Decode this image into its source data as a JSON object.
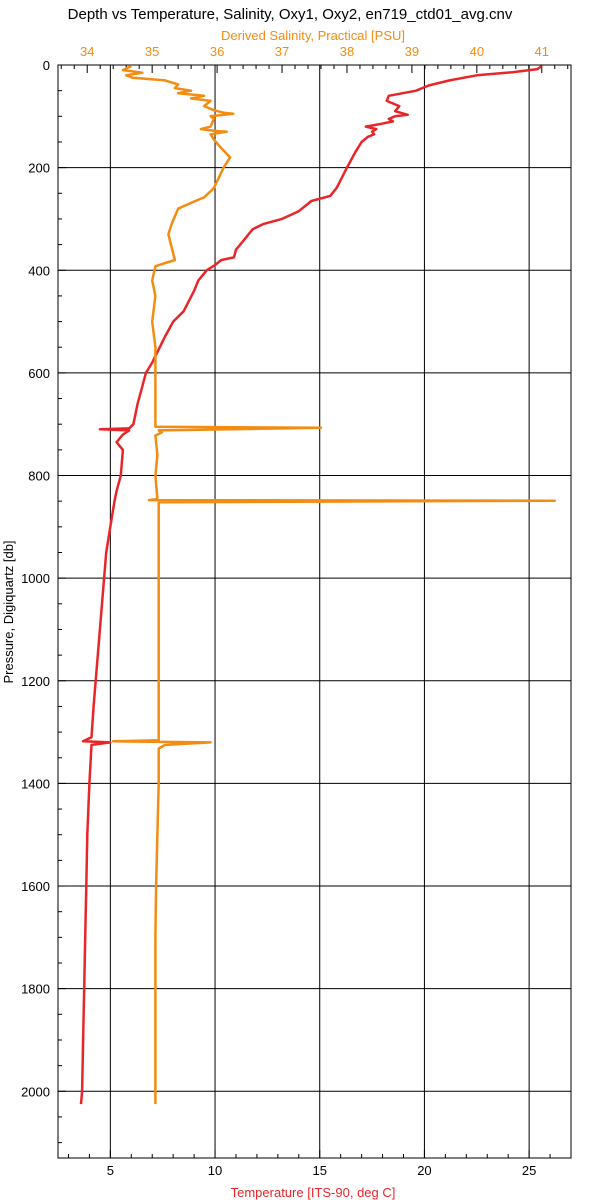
{
  "chart_data": {
    "type": "line",
    "title": "Depth vs Temperature, Salinity, Oxy1, Oxy2, en719_ctd01_avg.cnv",
    "y_axis": {
      "label": "Pressure, Digiquartz [db]",
      "range": [
        0,
        2130
      ],
      "inverted": true,
      "ticks": [
        0,
        200,
        400,
        600,
        800,
        1000,
        1200,
        1400,
        1600,
        1800,
        2000
      ],
      "minor_step": 50
    },
    "x_axis_bottom": {
      "label": "Temperature [ITS-90, deg C]",
      "range": [
        2.5,
        27
      ],
      "ticks": [
        5,
        10,
        15,
        20,
        25
      ],
      "minor_step": 1,
      "color": "#e8262a"
    },
    "x_axis_top": {
      "label": "Derived Salinity, Practical [PSU]",
      "range": [
        33.55,
        41.45
      ],
      "ticks": [
        34,
        35,
        36,
        37,
        38,
        39,
        40,
        41
      ],
      "minor_step": 0.2,
      "color": "#f28c13"
    },
    "grid": true,
    "series": [
      {
        "name": "Temperature [ITS-90, deg C]",
        "axis": "bottom",
        "color": "#e8262a",
        "points": [
          [
            25.6,
            2
          ],
          [
            25.4,
            8
          ],
          [
            24.2,
            14
          ],
          [
            22.5,
            20
          ],
          [
            21.2,
            30
          ],
          [
            20.2,
            40
          ],
          [
            19.6,
            50
          ],
          [
            18.3,
            60
          ],
          [
            18.2,
            70
          ],
          [
            18.8,
            80
          ],
          [
            18.6,
            90
          ],
          [
            19.2,
            97
          ],
          [
            18.6,
            100
          ],
          [
            18.3,
            105
          ],
          [
            18.5,
            110
          ],
          [
            17.9,
            115
          ],
          [
            17.2,
            120
          ],
          [
            17.7,
            125
          ],
          [
            17.5,
            130
          ],
          [
            17.6,
            135
          ],
          [
            17.3,
            140
          ],
          [
            17.0,
            150
          ],
          [
            16.7,
            170
          ],
          [
            16.3,
            200
          ],
          [
            15.8,
            240
          ],
          [
            15.5,
            255
          ],
          [
            14.6,
            265
          ],
          [
            14.0,
            285
          ],
          [
            13.2,
            300
          ],
          [
            12.3,
            310
          ],
          [
            11.8,
            320
          ],
          [
            11.4,
            340
          ],
          [
            11.0,
            360
          ],
          [
            10.9,
            375
          ],
          [
            10.3,
            380
          ],
          [
            10.0,
            390
          ],
          [
            9.6,
            400
          ],
          [
            9.2,
            420
          ],
          [
            9.0,
            440
          ],
          [
            8.5,
            480
          ],
          [
            8.0,
            500
          ],
          [
            7.6,
            530
          ],
          [
            7.3,
            555
          ],
          [
            7.0,
            580
          ],
          [
            6.7,
            600
          ],
          [
            6.5,
            630
          ],
          [
            6.3,
            660
          ],
          [
            6.1,
            700
          ],
          [
            5.9,
            708
          ],
          [
            4.5,
            710
          ],
          [
            5.9,
            712
          ],
          [
            5.6,
            720
          ],
          [
            5.3,
            735
          ],
          [
            5.6,
            750
          ],
          [
            5.5,
            800
          ],
          [
            5.3,
            830
          ],
          [
            5.2,
            850
          ],
          [
            5.0,
            900
          ],
          [
            4.8,
            950
          ],
          [
            4.6,
            1050
          ],
          [
            4.4,
            1150
          ],
          [
            4.2,
            1250
          ],
          [
            4.1,
            1310
          ],
          [
            3.7,
            1318
          ],
          [
            5.0,
            1320
          ],
          [
            4.1,
            1325
          ],
          [
            4.0,
            1400
          ],
          [
            3.9,
            1500
          ],
          [
            3.85,
            1600
          ],
          [
            3.8,
            1700
          ],
          [
            3.75,
            1800
          ],
          [
            3.7,
            1900
          ],
          [
            3.65,
            2000
          ],
          [
            3.6,
            2025
          ]
        ]
      },
      {
        "name": "Derived Salinity, Practical [PSU]",
        "axis": "top",
        "color": "#f28c13",
        "points": [
          [
            34.68,
            2
          ],
          [
            34.55,
            10
          ],
          [
            34.85,
            15
          ],
          [
            34.6,
            20
          ],
          [
            34.7,
            25
          ],
          [
            35.2,
            30
          ],
          [
            35.4,
            38
          ],
          [
            35.35,
            45
          ],
          [
            35.6,
            50
          ],
          [
            35.4,
            55
          ],
          [
            35.8,
            60
          ],
          [
            35.6,
            65
          ],
          [
            35.9,
            70
          ],
          [
            35.8,
            80
          ],
          [
            35.95,
            88
          ],
          [
            36.1,
            93
          ],
          [
            36.25,
            95
          ],
          [
            35.9,
            100
          ],
          [
            35.95,
            105
          ],
          [
            35.9,
            120
          ],
          [
            35.75,
            125
          ],
          [
            35.95,
            128
          ],
          [
            36.15,
            130
          ],
          [
            35.9,
            135
          ],
          [
            35.95,
            145
          ],
          [
            36.05,
            160
          ],
          [
            36.2,
            180
          ],
          [
            36.1,
            200
          ],
          [
            35.95,
            240
          ],
          [
            35.8,
            258
          ],
          [
            35.7,
            263
          ],
          [
            35.4,
            280
          ],
          [
            35.3,
            310
          ],
          [
            35.25,
            330
          ],
          [
            35.3,
            355
          ],
          [
            35.35,
            380
          ],
          [
            35.05,
            392
          ],
          [
            35.0,
            420
          ],
          [
            35.05,
            450
          ],
          [
            35.0,
            500
          ],
          [
            35.05,
            550
          ],
          [
            35.05,
            600
          ],
          [
            35.05,
            650
          ],
          [
            35.05,
            705
          ],
          [
            37.6,
            707
          ],
          [
            35.1,
            712
          ],
          [
            35.15,
            716
          ],
          [
            35.05,
            722
          ],
          [
            35.08,
            760
          ],
          [
            35.05,
            800
          ],
          [
            35.08,
            846
          ],
          [
            34.95,
            848
          ],
          [
            41.2,
            849
          ],
          [
            35.1,
            852
          ],
          [
            35.1,
            900
          ],
          [
            35.1,
            1000
          ],
          [
            35.1,
            1100
          ],
          [
            35.1,
            1200
          ],
          [
            35.1,
            1300
          ],
          [
            35.1,
            1316
          ],
          [
            34.4,
            1318
          ],
          [
            35.9,
            1320
          ],
          [
            35.2,
            1325
          ],
          [
            35.1,
            1332
          ],
          [
            35.1,
            1400
          ],
          [
            35.08,
            1500
          ],
          [
            35.06,
            1600
          ],
          [
            35.05,
            1700
          ],
          [
            35.05,
            1800
          ],
          [
            35.05,
            1900
          ],
          [
            35.05,
            2000
          ],
          [
            35.05,
            2025
          ]
        ]
      }
    ]
  }
}
